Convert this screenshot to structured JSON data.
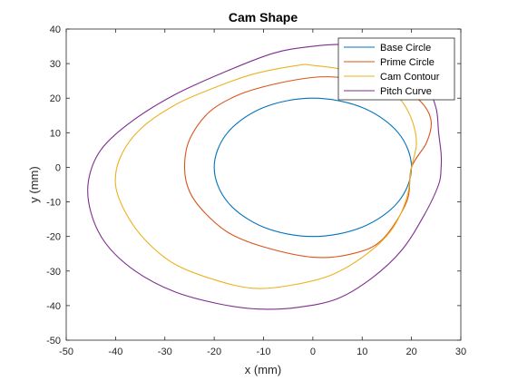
{
  "chart_data": {
    "type": "line",
    "title": "Cam Shape",
    "xlabel": "x (mm)",
    "ylabel": "y (mm)",
    "xlim": [
      -50,
      30
    ],
    "ylim": [
      -50,
      40
    ],
    "xticks": [
      -50,
      -40,
      -30,
      -20,
      -10,
      0,
      10,
      20,
      30
    ],
    "yticks": [
      -50,
      -40,
      -30,
      -20,
      -10,
      0,
      10,
      20,
      30,
      40
    ],
    "grid": false,
    "legend_position": "top-right",
    "series": [
      {
        "name": "Base Circle",
        "color": "#0072BD",
        "x": [
          20,
          17.3,
          10,
          0,
          -10,
          -17.3,
          -20,
          -17.3,
          -10,
          0,
          10,
          17.3,
          20
        ],
        "y": [
          0,
          10,
          17.3,
          20,
          17.3,
          10,
          0,
          -10,
          -17.3,
          -20,
          -17.3,
          -10,
          0
        ]
      },
      {
        "name": "Prime Circle",
        "color": "#D95319",
        "x": [
          20,
          23,
          24,
          22.5,
          19,
          13,
          6,
          0,
          -8,
          -15,
          -21,
          -25,
          -26,
          -25,
          -22,
          -17,
          -10,
          0,
          8,
          14,
          19,
          20
        ],
        "y": [
          0,
          7,
          13,
          18,
          22,
          25,
          26,
          26,
          24,
          21,
          16,
          8,
          0,
          -7,
          -13,
          -19,
          -23,
          -26,
          -25,
          -21,
          -10,
          0
        ]
      },
      {
        "name": "Cam Contour",
        "color": "#EDB120",
        "x": [
          20,
          21,
          20,
          17.5,
          13,
          7,
          0,
          -3,
          -12,
          -20,
          -28,
          -35,
          -39,
          -40,
          -38,
          -34,
          -28,
          -20,
          -12,
          -4,
          4,
          11,
          16,
          19,
          20
        ],
        "y": [
          0,
          7,
          14,
          20,
          24.5,
          28,
          29.5,
          29.5,
          27,
          23,
          18,
          11,
          3,
          -5,
          -13,
          -21,
          -28,
          -32.5,
          -35,
          -34,
          -31,
          -25,
          -18,
          -9,
          0
        ]
      },
      {
        "name": "Pitch Curve",
        "color": "#7E2F8E",
        "x": [
          26,
          26,
          25.5,
          25,
          23,
          19.5,
          14,
          7,
          0,
          -8,
          -18,
          -28,
          -37,
          -43,
          -45.5,
          -45,
          -42,
          -36,
          -28,
          -19,
          -11,
          -3,
          5,
          12,
          18,
          22.5,
          25.5,
          26
        ],
        "y": [
          0,
          4,
          10,
          17,
          24,
          30,
          34,
          35.5,
          35,
          33,
          27.5,
          21,
          13,
          5,
          -4,
          -13,
          -22,
          -30,
          -36,
          -39.5,
          -41,
          -40.5,
          -38,
          -32,
          -24,
          -14,
          -5,
          0
        ]
      }
    ]
  }
}
